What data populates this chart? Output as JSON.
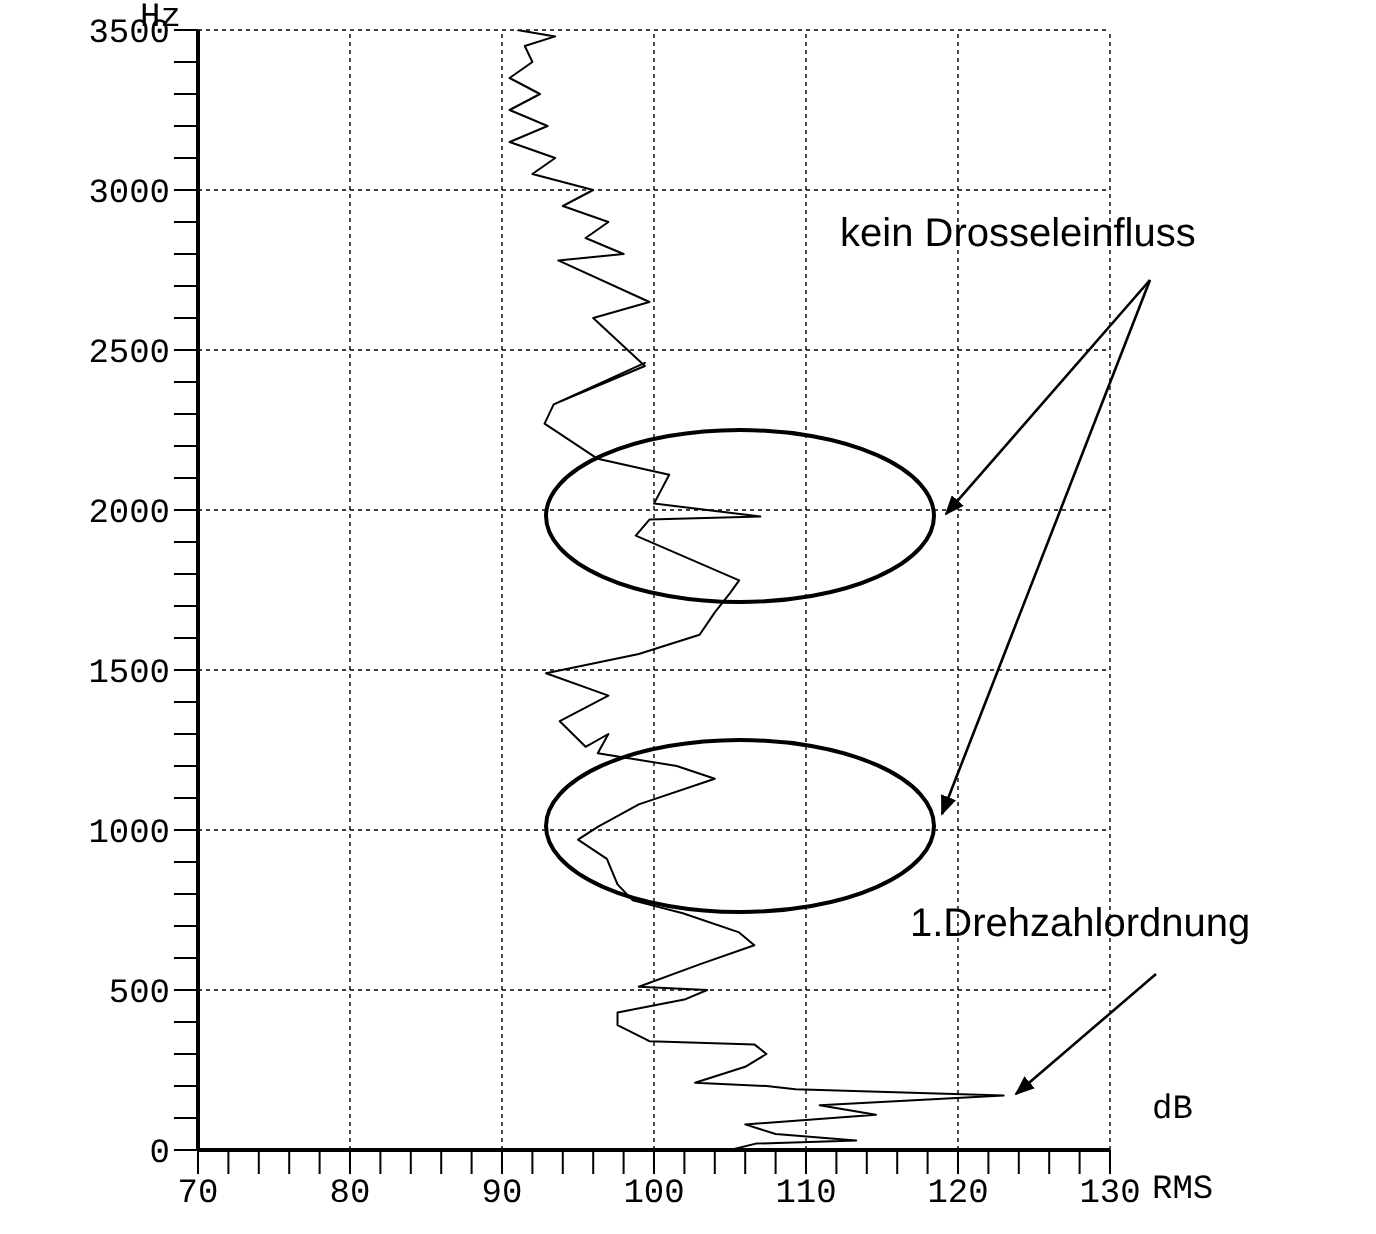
{
  "chart_data": {
    "type": "line",
    "ylabel": "Hz",
    "xlabel": "dB RMS",
    "x": [
      91,
      93.5,
      91.5,
      92,
      90.5,
      92.5,
      90.5,
      93,
      90.5,
      93.5,
      92,
      96,
      94,
      97,
      95.5,
      98,
      93.7,
      99.7,
      96,
      99.4,
      93.4,
      99.4,
      93.4,
      92.8,
      96.3,
      101,
      100,
      107,
      99.7,
      98.8,
      105.6,
      105,
      104,
      103,
      99,
      92.9,
      97,
      93.8,
      95.5,
      97,
      96.3,
      101.5,
      104,
      99,
      96.3,
      95,
      96.9,
      97.6,
      98.6,
      101.9,
      105.6,
      106.6,
      103,
      99,
      103.5,
      102,
      97.6,
      97.6,
      99.7,
      106.6,
      107.4,
      106,
      102.7,
      107.4,
      109.3,
      123,
      110.9,
      114.6,
      106,
      108,
      113.3,
      106.7,
      105
    ],
    "values": [
      3500,
      3480,
      3450,
      3400,
      3350,
      3300,
      3250,
      3200,
      3150,
      3100,
      3050,
      3000,
      2950,
      2900,
      2850,
      2800,
      2780,
      2650,
      2600,
      2450,
      2330,
      2460,
      2330,
      2270,
      2160,
      2110,
      2020,
      1980,
      1970,
      1920,
      1780,
      1740,
      1680,
      1610,
      1550,
      1490,
      1420,
      1340,
      1260,
      1300,
      1240,
      1200,
      1160,
      1080,
      1010,
      970,
      910,
      830,
      780,
      740,
      680,
      640,
      580,
      510,
      500,
      470,
      430,
      390,
      340,
      330,
      300,
      260,
      210,
      200,
      190,
      170,
      140,
      110,
      80,
      50,
      30,
      20,
      0
    ],
    "color": "#000000",
    "line_style": "solid",
    "marker": "none",
    "xlim": [
      70,
      130
    ],
    "xticks": [
      70,
      {
        "value": 72,
        "label": null
      },
      {
        "value": 74,
        "label": null
      },
      {
        "value": 76,
        "label": null
      },
      {
        "value": 78,
        "label": null
      },
      80,
      {
        "value": 82,
        "label": null
      },
      {
        "value": 84,
        "label": null
      },
      {
        "value": 86,
        "label": null
      },
      {
        "value": 88,
        "label": null
      },
      90,
      {
        "value": 92,
        "label": null
      },
      {
        "value": 94,
        "label": null
      },
      {
        "value": 96,
        "label": null
      },
      {
        "value": 98,
        "label": null
      },
      100,
      {
        "value": 102,
        "label": null
      },
      {
        "value": 104,
        "label": null
      },
      {
        "value": 106,
        "label": null
      },
      {
        "value": 108,
        "label": null
      },
      110,
      {
        "value": 112,
        "label": null
      },
      {
        "value": 114,
        "label": null
      },
      {
        "value": 116,
        "label": null
      },
      {
        "value": 118,
        "label": null
      },
      120,
      {
        "value": 122,
        "label": null
      },
      {
        "value": 124,
        "label": null
      },
      {
        "value": 126,
        "label": null
      },
      {
        "value": 128,
        "label": null
      },
      130
    ],
    "ylim": [
      0,
      3500
    ],
    "yticks": [
      0,
      {
        "value": 100,
        "label": null
      },
      {
        "value": 200,
        "label": null
      },
      {
        "value": 300,
        "label": null
      },
      {
        "value": 400,
        "label": null
      },
      500,
      {
        "value": 600,
        "label": null
      },
      {
        "value": 700,
        "label": null
      },
      {
        "value": 800,
        "label": null
      },
      {
        "value": 900,
        "label": null
      },
      1000,
      {
        "value": 1100,
        "label": null
      },
      {
        "value": 1200,
        "label": null
      },
      {
        "value": 1300,
        "label": null
      },
      {
        "value": 1400,
        "label": null
      },
      1500,
      {
        "value": 1600,
        "label": null
      },
      {
        "value": 1700,
        "label": null
      },
      {
        "value": 1800,
        "label": null
      },
      {
        "value": 1900,
        "label": null
      },
      2000,
      {
        "value": 2100,
        "label": null
      },
      {
        "value": 2200,
        "label": null
      },
      {
        "value": 2300,
        "label": null
      },
      {
        "value": 2400,
        "label": null
      },
      2500,
      {
        "value": 2600,
        "label": null
      },
      {
        "value": 2700,
        "label": null
      },
      {
        "value": 2800,
        "label": null
      },
      {
        "value": 2900,
        "label": null
      },
      3000,
      {
        "value": 3100,
        "label": null
      },
      {
        "value": 3200,
        "label": null
      },
      {
        "value": 3300,
        "label": null
      },
      {
        "value": 3400,
        "label": null
      },
      3500
    ],
    "grid": true,
    "annotations": [
      "kein Drosseleinfluss",
      "1.Drehzahlordnung"
    ]
  }
}
